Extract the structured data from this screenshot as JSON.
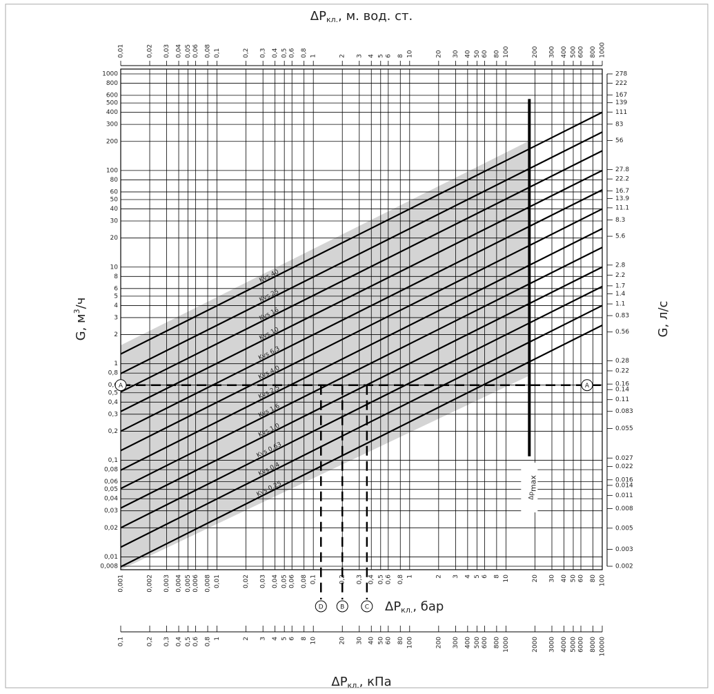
{
  "chart_data": {
    "type": "line",
    "log_x": true,
    "log_y": true,
    "grid": true,
    "x": [
      0.001,
      100
    ],
    "xlim": [
      0.001,
      100
    ],
    "x_title": {
      "main": "ΔP",
      "sub": "кл.",
      "rest": ", бар"
    },
    "xticks": [
      {
        "value": 0.001,
        "label": "0,001"
      },
      {
        "value": 0.002,
        "label": "0,002"
      },
      {
        "value": 0.003,
        "label": "0,003"
      },
      {
        "value": 0.004,
        "label": "0,004"
      },
      {
        "value": 0.005,
        "label": "0,005"
      },
      {
        "value": 0.006,
        "label": "0,006"
      },
      {
        "value": 0.008,
        "label": "0,008"
      },
      {
        "value": 0.01,
        "label": "0,01"
      },
      {
        "value": 0.02,
        "label": "0,02"
      },
      {
        "value": 0.03,
        "label": "0,03"
      },
      {
        "value": 0.04,
        "label": "0,04"
      },
      {
        "value": 0.05,
        "label": "0,05"
      },
      {
        "value": 0.06,
        "label": "0,06"
      },
      {
        "value": 0.08,
        "label": "0,08"
      },
      {
        "value": 0.1,
        "label": "0,1"
      },
      {
        "value": 0.2,
        "label": "0,2"
      },
      {
        "value": 0.3,
        "label": "0,3"
      },
      {
        "value": 0.4,
        "label": "0,4"
      },
      {
        "value": 0.5,
        "label": "0,5"
      },
      {
        "value": 0.6,
        "label": "0,6"
      },
      {
        "value": 0.8,
        "label": "0,8"
      },
      1,
      2,
      3,
      4,
      5,
      6,
      8,
      10,
      20,
      30,
      40,
      50,
      60,
      80,
      100
    ],
    "ylim": [
      0.008,
      1000
    ],
    "y_title": {
      "main": "G, м",
      "sup": "3",
      "rest": "/ч"
    },
    "yticks": [
      {
        "value": 0.008,
        "label": "0,008"
      },
      {
        "value": 0.01,
        "label": "0,01"
      },
      {
        "value": 0.02,
        "label": "0,02"
      },
      {
        "value": 0.03,
        "label": "0,03"
      },
      {
        "value": 0.04,
        "label": "0,04"
      },
      {
        "value": 0.05,
        "label": "0,05"
      },
      {
        "value": 0.06,
        "label": "0,06"
      },
      {
        "value": 0.08,
        "label": "0,08"
      },
      {
        "value": 0.1,
        "label": "0,1"
      },
      {
        "value": 0.2,
        "label": "0,2"
      },
      {
        "value": 0.3,
        "label": "0,3"
      },
      {
        "value": 0.4,
        "label": "0,4"
      },
      {
        "value": 0.5,
        "label": "0,5"
      },
      {
        "value": 0.6,
        "label": "0,6"
      },
      {
        "value": 0.8,
        "label": "0,8"
      },
      1,
      2,
      3,
      4,
      5,
      6,
      8,
      10,
      20,
      30,
      40,
      50,
      60,
      80,
      100,
      200,
      300,
      400,
      500,
      600,
      800,
      1000
    ],
    "y2lim": [
      0.002,
      278
    ],
    "y2_title": "G, л/с",
    "y2ticks": [
      0.002,
      0.003,
      0.005,
      0.008,
      0.011,
      0.014,
      0.016,
      0.022,
      0.027,
      0.055,
      0.083,
      0.11,
      0.14,
      0.16,
      0.22,
      0.28,
      0.56,
      0.83,
      1.1,
      1.4,
      1.7,
      2.2,
      2.8,
      5.6,
      8.3,
      11.1,
      13.9,
      16.7,
      22.2,
      27.8,
      56,
      83,
      111,
      139,
      167,
      222,
      278
    ],
    "top_axis": {
      "title": {
        "main": "ΔP",
        "sub": "кл.",
        "rest": ", м. вод. ст."
      },
      "lim": [
        0.01,
        1000
      ],
      "ticks": [
        {
          "value": 0.01,
          "label": "0,01"
        },
        {
          "value": 0.02,
          "label": "0,02"
        },
        {
          "value": 0.03,
          "label": "0,03"
        },
        {
          "value": 0.04,
          "label": "0,04"
        },
        {
          "value": 0.05,
          "label": "0,05"
        },
        {
          "value": 0.06,
          "label": "0,06"
        },
        {
          "value": 0.08,
          "label": "0,08"
        },
        {
          "value": 0.1,
          "label": "0,1"
        },
        {
          "value": 0.2,
          "label": "0,2"
        },
        {
          "value": 0.3,
          "label": "0,3"
        },
        {
          "value": 0.4,
          "label": "0,4"
        },
        {
          "value": 0.5,
          "label": "0,5"
        },
        {
          "value": 0.6,
          "label": "0,6"
        },
        {
          "value": 0.8,
          "label": "0,8"
        },
        1,
        2,
        3,
        4,
        5,
        6,
        8,
        10,
        20,
        30,
        40,
        50,
        60,
        80,
        100,
        200,
        300,
        400,
        500,
        600,
        800,
        1000
      ]
    },
    "kpa_axis": {
      "title": {
        "main": "ΔP",
        "sub": "кл.",
        "rest": ", кПа"
      },
      "lim": [
        0.1,
        10000
      ],
      "ticks": [
        {
          "value": 0.1,
          "label": "0,1"
        },
        {
          "value": 0.2,
          "label": "0,2"
        },
        {
          "value": 0.3,
          "label": "0,3"
        },
        {
          "value": 0.4,
          "label": "0,4"
        },
        {
          "value": 0.5,
          "label": "0,5"
        },
        {
          "value": 0.6,
          "label": "0,6"
        },
        {
          "value": 0.8,
          "label": "0,8"
        },
        1,
        2,
        3,
        4,
        5,
        6,
        8,
        10,
        20,
        30,
        40,
        50,
        60,
        80,
        100,
        200,
        300,
        400,
        500,
        600,
        800,
        1000,
        2000,
        3000,
        4000,
        5000,
        6000,
        8000,
        10000
      ]
    },
    "series": [
      {
        "name": "Kvs 40",
        "color": "#000000",
        "values": [
          1.26,
          400
        ]
      },
      {
        "name": "Kvs 25",
        "color": "#000000",
        "values": [
          0.79,
          250
        ]
      },
      {
        "name": "Kvs 16",
        "color": "#000000",
        "values": [
          0.51,
          160
        ]
      },
      {
        "name": "Kvs 10",
        "color": "#000000",
        "values": [
          0.32,
          100
        ]
      },
      {
        "name": "Kvs 6.3",
        "color": "#000000",
        "values": [
          0.2,
          63
        ]
      },
      {
        "name": "Kvs 4.0",
        "color": "#000000",
        "values": [
          0.126,
          40
        ]
      },
      {
        "name": "Kvs 2.5",
        "color": "#000000",
        "values": [
          0.079,
          25
        ]
      },
      {
        "name": "Kvs 1.6",
        "color": "#000000",
        "values": [
          0.051,
          16
        ]
      },
      {
        "name": "Kvs 1.0",
        "color": "#000000",
        "values": [
          0.032,
          10
        ]
      },
      {
        "name": "Kvs 0.63",
        "color": "#000000",
        "values": [
          0.02,
          6.3
        ]
      },
      {
        "name": "Kvs 0.4",
        "color": "#000000",
        "values": [
          0.0126,
          4
        ]
      },
      {
        "name": "Kvs 0.25",
        "color": "#000000",
        "values": [
          0.0079,
          2.5
        ]
      }
    ],
    "guide": {
      "label": "A",
      "G": 0.6,
      "points": [
        {
          "label": "D",
          "x": 0.12
        },
        {
          "label": "B",
          "x": 0.2
        },
        {
          "label": "C",
          "x": 0.36
        }
      ]
    },
    "dp_max": {
      "label": "Δp",
      "sub": "max",
      "x": 17.5,
      "G": [
        0.11,
        550
      ]
    }
  }
}
